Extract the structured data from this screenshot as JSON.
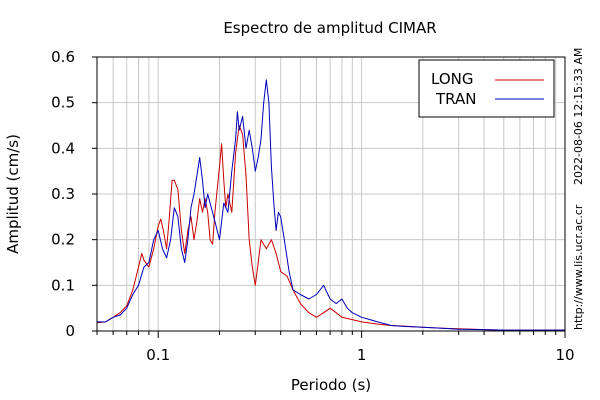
{
  "side_text": {
    "timestamp": "2022-08-06 12:15:33 AM",
    "url": "http://www.lis.ucr.ac.cr"
  },
  "chart_data": {
    "type": "line",
    "title": "Espectro de amplitud CIMAR",
    "xlabel": "Periodo (s)",
    "ylabel": "Amplitud (cm/s)",
    "x_scale": "log",
    "xlim": [
      0.05,
      10
    ],
    "ylim": [
      0,
      0.6
    ],
    "yticks": [
      0,
      0.1,
      0.2,
      0.3,
      0.4,
      0.5,
      0.6
    ],
    "ytick_labels": [
      "0",
      "0.1",
      "0.2",
      "0.3",
      "0.4",
      "0.5",
      "0.6"
    ],
    "xticks": [
      0.1,
      1,
      10
    ],
    "xtick_labels": [
      "0.1",
      "1",
      "10"
    ],
    "grid": true,
    "legend_position": "top-right",
    "series": [
      {
        "name": "LONG",
        "color": "#cc0000",
        "points": [
          [
            0.05,
            0.018
          ],
          [
            0.055,
            0.02
          ],
          [
            0.06,
            0.03
          ],
          [
            0.065,
            0.04
          ],
          [
            0.07,
            0.055
          ],
          [
            0.075,
            0.09
          ],
          [
            0.08,
            0.14
          ],
          [
            0.083,
            0.17
          ],
          [
            0.085,
            0.155
          ],
          [
            0.09,
            0.14
          ],
          [
            0.095,
            0.18
          ],
          [
            0.1,
            0.23
          ],
          [
            0.103,
            0.245
          ],
          [
            0.106,
            0.22
          ],
          [
            0.11,
            0.18
          ],
          [
            0.113,
            0.24
          ],
          [
            0.117,
            0.33
          ],
          [
            0.12,
            0.33
          ],
          [
            0.125,
            0.31
          ],
          [
            0.13,
            0.22
          ],
          [
            0.135,
            0.17
          ],
          [
            0.14,
            0.22
          ],
          [
            0.145,
            0.25
          ],
          [
            0.15,
            0.2
          ],
          [
            0.155,
            0.24
          ],
          [
            0.16,
            0.29
          ],
          [
            0.165,
            0.26
          ],
          [
            0.17,
            0.29
          ],
          [
            0.175,
            0.26
          ],
          [
            0.18,
            0.2
          ],
          [
            0.185,
            0.19
          ],
          [
            0.19,
            0.26
          ],
          [
            0.2,
            0.36
          ],
          [
            0.205,
            0.41
          ],
          [
            0.21,
            0.33
          ],
          [
            0.215,
            0.27
          ],
          [
            0.22,
            0.3
          ],
          [
            0.23,
            0.26
          ],
          [
            0.24,
            0.39
          ],
          [
            0.25,
            0.45
          ],
          [
            0.26,
            0.43
          ],
          [
            0.27,
            0.34
          ],
          [
            0.28,
            0.2
          ],
          [
            0.29,
            0.14
          ],
          [
            0.3,
            0.1
          ],
          [
            0.31,
            0.15
          ],
          [
            0.32,
            0.2
          ],
          [
            0.34,
            0.18
          ],
          [
            0.36,
            0.2
          ],
          [
            0.38,
            0.17
          ],
          [
            0.4,
            0.13
          ],
          [
            0.43,
            0.12
          ],
          [
            0.46,
            0.09
          ],
          [
            0.5,
            0.06
          ],
          [
            0.55,
            0.04
          ],
          [
            0.6,
            0.03
          ],
          [
            0.65,
            0.04
          ],
          [
            0.7,
            0.05
          ],
          [
            0.75,
            0.04
          ],
          [
            0.8,
            0.03
          ],
          [
            0.9,
            0.025
          ],
          [
            1.0,
            0.02
          ],
          [
            1.2,
            0.015
          ],
          [
            1.4,
            0.012
          ],
          [
            1.7,
            0.01
          ],
          [
            2.0,
            0.008
          ],
          [
            2.5,
            0.006
          ],
          [
            3.0,
            0.005
          ],
          [
            4.0,
            0.003
          ],
          [
            5.0,
            0.002
          ],
          [
            7.0,
            0.002
          ],
          [
            10.0,
            0.002
          ]
        ]
      },
      {
        "name": "TRAN",
        "color": "#0000bb",
        "points": [
          [
            0.05,
            0.02
          ],
          [
            0.055,
            0.02
          ],
          [
            0.06,
            0.03
          ],
          [
            0.065,
            0.035
          ],
          [
            0.07,
            0.05
          ],
          [
            0.075,
            0.08
          ],
          [
            0.08,
            0.1
          ],
          [
            0.085,
            0.14
          ],
          [
            0.09,
            0.15
          ],
          [
            0.095,
            0.2
          ],
          [
            0.1,
            0.22
          ],
          [
            0.105,
            0.18
          ],
          [
            0.11,
            0.16
          ],
          [
            0.115,
            0.2
          ],
          [
            0.12,
            0.27
          ],
          [
            0.125,
            0.25
          ],
          [
            0.13,
            0.18
          ],
          [
            0.135,
            0.15
          ],
          [
            0.14,
            0.2
          ],
          [
            0.145,
            0.27
          ],
          [
            0.15,
            0.3
          ],
          [
            0.155,
            0.34
          ],
          [
            0.16,
            0.38
          ],
          [
            0.165,
            0.33
          ],
          [
            0.17,
            0.27
          ],
          [
            0.175,
            0.3
          ],
          [
            0.18,
            0.28
          ],
          [
            0.19,
            0.24
          ],
          [
            0.2,
            0.2
          ],
          [
            0.21,
            0.28
          ],
          [
            0.22,
            0.26
          ],
          [
            0.23,
            0.35
          ],
          [
            0.24,
            0.42
          ],
          [
            0.245,
            0.48
          ],
          [
            0.25,
            0.44
          ],
          [
            0.26,
            0.47
          ],
          [
            0.27,
            0.4
          ],
          [
            0.28,
            0.44
          ],
          [
            0.29,
            0.4
          ],
          [
            0.3,
            0.35
          ],
          [
            0.31,
            0.38
          ],
          [
            0.32,
            0.42
          ],
          [
            0.33,
            0.5
          ],
          [
            0.34,
            0.55
          ],
          [
            0.35,
            0.5
          ],
          [
            0.36,
            0.36
          ],
          [
            0.37,
            0.28
          ],
          [
            0.38,
            0.22
          ],
          [
            0.39,
            0.26
          ],
          [
            0.4,
            0.25
          ],
          [
            0.42,
            0.19
          ],
          [
            0.44,
            0.13
          ],
          [
            0.46,
            0.09
          ],
          [
            0.5,
            0.08
          ],
          [
            0.55,
            0.07
          ],
          [
            0.6,
            0.08
          ],
          [
            0.65,
            0.1
          ],
          [
            0.7,
            0.07
          ],
          [
            0.75,
            0.06
          ],
          [
            0.8,
            0.07
          ],
          [
            0.85,
            0.05
          ],
          [
            0.9,
            0.04
          ],
          [
            1.0,
            0.03
          ],
          [
            1.1,
            0.025
          ],
          [
            1.2,
            0.02
          ],
          [
            1.4,
            0.012
          ],
          [
            1.6,
            0.01
          ],
          [
            2.0,
            0.008
          ],
          [
            2.5,
            0.006
          ],
          [
            3.0,
            0.004
          ],
          [
            4.0,
            0.003
          ],
          [
            5.0,
            0.002
          ],
          [
            7.0,
            0.002
          ],
          [
            10.0,
            0.002
          ]
        ]
      }
    ]
  }
}
